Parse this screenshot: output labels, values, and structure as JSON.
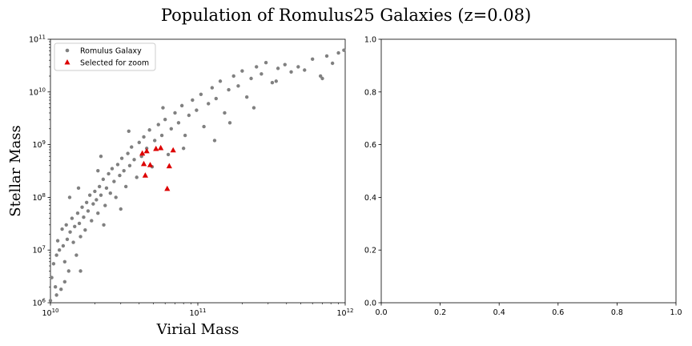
{
  "figure": {
    "suptitle": "Population of Romulus25 Galaxies (z=0.08)"
  },
  "chart_data": [
    {
      "type": "scatter",
      "xlabel": "Virial Mass",
      "ylabel": "Stellar Mass",
      "xscale": "log",
      "yscale": "log",
      "xlim": [
        10000000000.0,
        1000000000000.0
      ],
      "ylim": [
        1000000.0,
        100000000000.0
      ],
      "x_ticks": [
        {
          "value": 10000000000.0,
          "base": "10",
          "exp": "10"
        },
        {
          "value": 100000000000.0,
          "base": "10",
          "exp": "11"
        },
        {
          "value": 1000000000000.0,
          "base": "10",
          "exp": "12"
        }
      ],
      "y_ticks": [
        {
          "value": 1000000.0,
          "base": "10",
          "exp": "6"
        },
        {
          "value": 10000000.0,
          "base": "10",
          "exp": "7"
        },
        {
          "value": 100000000.0,
          "base": "10",
          "exp": "8"
        },
        {
          "value": 1000000000.0,
          "base": "10",
          "exp": "9"
        },
        {
          "value": 10000000000.0,
          "base": "10",
          "exp": "10"
        },
        {
          "value": 100000000000.0,
          "base": "10",
          "exp": "11"
        }
      ],
      "grid": false,
      "legend": {
        "position": "upper left",
        "entries": [
          {
            "label": "Romulus Galaxy",
            "marker": "circle",
            "color": "#808080"
          },
          {
            "label": "Selected for zoom",
            "marker": "triangle",
            "color": "#dd0000"
          }
        ]
      },
      "series": [
        {
          "name": "Romulus Galaxy",
          "color": "#808080",
          "marker": "circle",
          "points": [
            [
              10000000000.0,
              1100000.0
            ],
            [
              10200000000.0,
              3000000.0
            ],
            [
              10500000000.0,
              5500000.0
            ],
            [
              10800000000.0,
              2000000.0
            ],
            [
              11000000000.0,
              8000000.0
            ],
            [
              11200000000.0,
              15000000.0
            ],
            [
              11500000000.0,
              10000000.0
            ],
            [
              11800000000.0,
              1800000.0
            ],
            [
              12000000000.0,
              25000000.0
            ],
            [
              12200000000.0,
              12000000.0
            ],
            [
              12500000000.0,
              6000000.0
            ],
            [
              12800000000.0,
              30000000.0
            ],
            [
              13000000000.0,
              16000000.0
            ],
            [
              13300000000.0,
              4000000.0
            ],
            [
              13600000000.0,
              22000000.0
            ],
            [
              14000000000.0,
              40000000.0
            ],
            [
              14300000000.0,
              14000000.0
            ],
            [
              14600000000.0,
              28000000.0
            ],
            [
              15000000000.0,
              8000000.0
            ],
            [
              15300000000.0,
              50000000.0
            ],
            [
              15700000000.0,
              32000000.0
            ],
            [
              16000000000.0,
              18000000.0
            ],
            [
              16400000000.0,
              65000000.0
            ],
            [
              16800000000.0,
              42000000.0
            ],
            [
              17200000000.0,
              24000000.0
            ],
            [
              17600000000.0,
              80000000.0
            ],
            [
              18000000000.0,
              55000000.0
            ],
            [
              18500000000.0,
              110000000.0
            ],
            [
              19000000000.0,
              36000000.0
            ],
            [
              19500000000.0,
              75000000.0
            ],
            [
              20000000000.0,
              130000000.0
            ],
            [
              20500000000.0,
              90000000.0
            ],
            [
              21000000000.0,
              50000000.0
            ],
            [
              21500000000.0,
              160000000.0
            ],
            [
              22000000000.0,
              110000000.0
            ],
            [
              22800000000.0,
              220000000.0
            ],
            [
              23500000000.0,
              70000000.0
            ],
            [
              24000000000.0,
              150000000.0
            ],
            [
              24800000000.0,
              280000000.0
            ],
            [
              25500000000.0,
              120000000.0
            ],
            [
              26200000000.0,
              350000000.0
            ],
            [
              27000000000.0,
              200000000.0
            ],
            [
              27800000000.0,
              100000000.0
            ],
            [
              28600000000.0,
              420000000.0
            ],
            [
              29500000000.0,
              260000000.0
            ],
            [
              30500000000.0,
              550000000.0
            ],
            [
              31500000000.0,
              320000000.0
            ],
            [
              32500000000.0,
              160000000.0
            ],
            [
              33500000000.0,
              680000000.0
            ],
            [
              34500000000.0,
              400000000.0
            ],
            [
              35500000000.0,
              900000000.0
            ],
            [
              37000000000.0,
              520000000.0
            ],
            [
              38500000000.0,
              240000000.0
            ],
            [
              40000000000.0,
              1100000000.0
            ],
            [
              41500000000.0,
              600000000.0
            ],
            [
              43000000000.0,
              1400000000.0
            ],
            [
              45000000000.0,
              850000000.0
            ],
            [
              47000000000.0,
              1900000000.0
            ],
            [
              49000000000.0,
              380000000.0
            ],
            [
              51000000000.0,
              1200000000.0
            ],
            [
              54000000000.0,
              2400000000.0
            ],
            [
              57000000000.0,
              1500000000.0
            ],
            [
              60000000000.0,
              3000000000.0
            ],
            [
              63000000000.0,
              650000000.0
            ],
            [
              66000000000.0,
              2000000000.0
            ],
            [
              70000000000.0,
              4000000000.0
            ],
            [
              74000000000.0,
              2600000000.0
            ],
            [
              78000000000.0,
              5500000000.0
            ],
            [
              82000000000.0,
              1500000000.0
            ],
            [
              87000000000.0,
              3600000000.0
            ],
            [
              92000000000.0,
              7000000000.0
            ],
            [
              98000000000.0,
              4500000000.0
            ],
            [
              105000000000.0,
              9000000000.0
            ],
            [
              110000000000.0,
              2200000000.0
            ],
            [
              118000000000.0,
              6000000000.0
            ],
            [
              125000000000.0,
              12000000000.0
            ],
            [
              133000000000.0,
              7500000000.0
            ],
            [
              142000000000.0,
              16000000000.0
            ],
            [
              152000000000.0,
              4000000000.0
            ],
            [
              162000000000.0,
              11000000000.0
            ],
            [
              175000000000.0,
              20000000000.0
            ],
            [
              188000000000.0,
              13000000000.0
            ],
            [
              200000000000.0,
              25000000000.0
            ],
            [
              215000000000.0,
              8000000000.0
            ],
            [
              230000000000.0,
              18000000000.0
            ],
            [
              250000000000.0,
              30000000000.0
            ],
            [
              270000000000.0,
              22000000000.0
            ],
            [
              290000000000.0,
              36000000000.0
            ],
            [
              320000000000.0,
              15000000000.0
            ],
            [
              350000000000.0,
              28000000000.0
            ],
            [
              390000000000.0,
              33000000000.0
            ],
            [
              430000000000.0,
              24000000000.0
            ],
            [
              480000000000.0,
              30000000000.0
            ],
            [
              530000000000.0,
              26000000000.0
            ],
            [
              600000000000.0,
              42000000000.0
            ],
            [
              680000000000.0,
              20000000000.0
            ],
            [
              750000000000.0,
              48000000000.0
            ],
            [
              820000000000.0,
              35000000000.0
            ],
            [
              900000000000.0,
              55000000000.0
            ],
            [
              980000000000.0,
              62000000000.0
            ],
            [
              11000000000.0,
              1400000.0
            ],
            [
              12500000000.0,
              2500000.0
            ],
            [
              16000000000.0,
              4000000.0
            ],
            [
              23000000000.0,
              30000000.0
            ],
            [
              30000000000.0,
              60000000.0
            ],
            [
              13500000000.0,
              100000000.0
            ],
            [
              15500000000.0,
              150000000.0
            ],
            [
              21000000000.0,
              320000000.0
            ],
            [
              22000000000.0,
              600000000.0
            ],
            [
              34000000000.0,
              1800000000.0
            ],
            [
              58000000000.0,
              5000000000.0
            ],
            [
              80000000000.0,
              850000000.0
            ],
            [
              130000000000.0,
              1200000000.0
            ],
            [
              165000000000.0,
              2600000000.0
            ],
            [
              240000000000.0,
              5000000000.0
            ],
            [
              340000000000.0,
              16000000000.0
            ],
            [
              700000000000.0,
              18000000000.0
            ]
          ]
        },
        {
          "name": "Selected for zoom",
          "color": "#dd0000",
          "marker": "triangle",
          "points": [
            [
              42000000000.0,
              680000000.0
            ],
            [
              43000000000.0,
              430000000.0
            ],
            [
              45000000000.0,
              750000000.0
            ],
            [
              47500000000.0,
              410000000.0
            ],
            [
              52000000000.0,
              830000000.0
            ],
            [
              56000000000.0,
              860000000.0
            ],
            [
              44000000000.0,
              260000000.0
            ],
            [
              62000000000.0,
              145000000.0
            ],
            [
              64000000000.0,
              390000000.0
            ],
            [
              68000000000.0,
              780000000.0
            ]
          ]
        }
      ]
    },
    {
      "type": "scatter",
      "xlabel": "",
      "ylabel": "",
      "xlim": [
        0,
        1
      ],
      "ylim": [
        0,
        1
      ],
      "x_ticks": [
        "0.0",
        "0.2",
        "0.4",
        "0.6",
        "0.8",
        "1.0"
      ],
      "y_ticks": [
        "0.0",
        "0.2",
        "0.4",
        "0.6",
        "0.8",
        "1.0"
      ],
      "grid": false,
      "series": []
    }
  ]
}
